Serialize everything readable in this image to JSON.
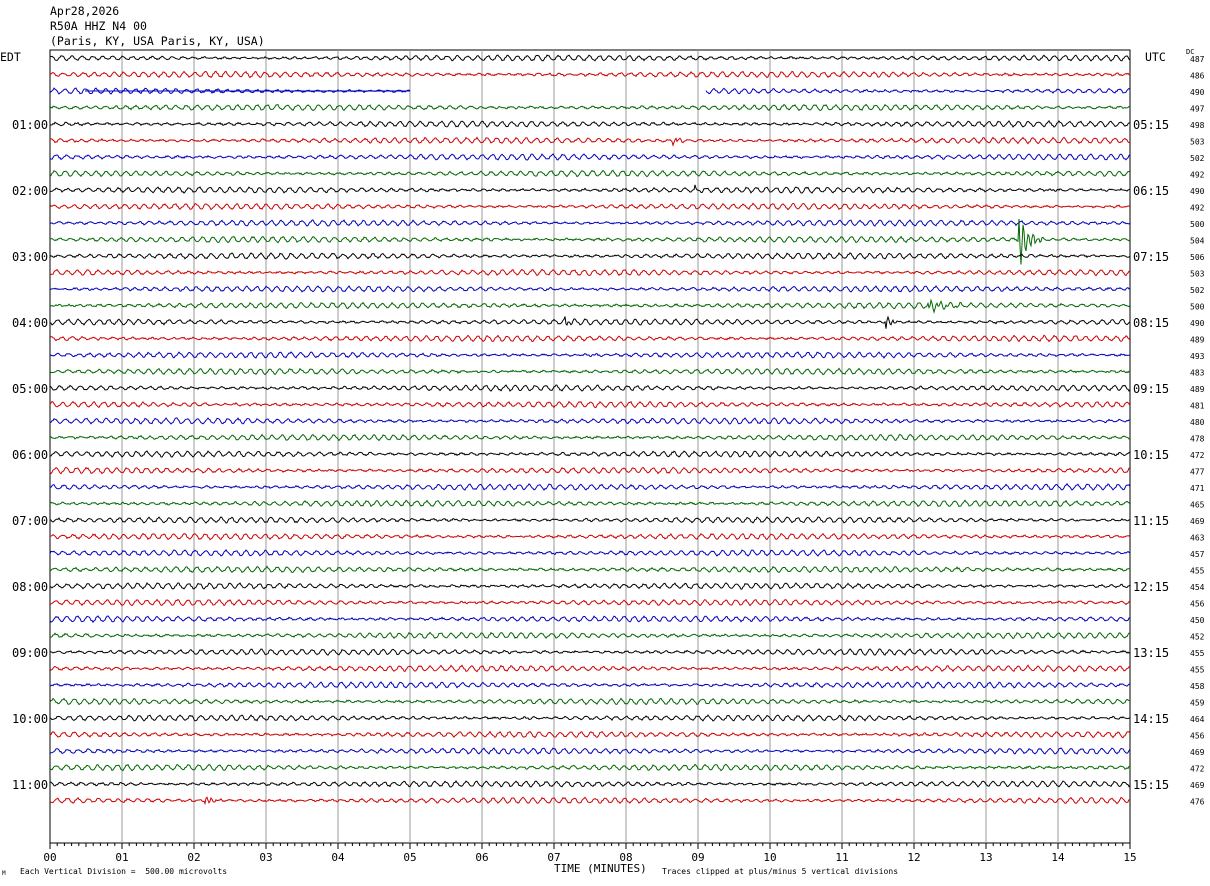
{
  "header": {
    "date": "Apr28,2026",
    "station": "R50A HHZ N4 00",
    "location": "(Paris, KY, USA Paris, KY, USA)"
  },
  "left_tz": "EDT",
  "right_tz": "UTC",
  "dc_label": "DC",
  "footer": {
    "scale": "Each Vertical Division =  500.00 microvolts",
    "xaxis_title": "TIME (MINUTES)",
    "clip_note": "Traces clipped at plus/minus 5 vertical divisions",
    "logo": "M"
  },
  "colors": {
    "trace_cycle": [
      "#000000",
      "#cc0000",
      "#0000bb",
      "#006600"
    ],
    "grid": "#999999"
  },
  "chart_data": {
    "type": "line",
    "title": "R50A HHZ N4 00",
    "xlabel": "TIME (MINUTES)",
    "x_ticks": [
      "00",
      "01",
      "02",
      "03",
      "04",
      "05",
      "06",
      "07",
      "08",
      "09",
      "10",
      "11",
      "12",
      "13",
      "14",
      "15"
    ],
    "xlim": [
      0,
      15
    ],
    "traces_per_hour": 4,
    "left_hour_labels": [
      "01:00",
      "02:00",
      "03:00",
      "04:00",
      "05:00",
      "06:00",
      "07:00",
      "08:00",
      "09:00",
      "10:00",
      "11:00"
    ],
    "right_hour_labels": [
      "05:15",
      "06:15",
      "07:15",
      "08:15",
      "09:15",
      "10:15",
      "11:15",
      "12:15",
      "13:15",
      "14:15",
      "15:15"
    ],
    "dc_offsets": [
      487,
      486,
      490,
      497,
      498,
      503,
      502,
      492,
      490,
      492,
      500,
      504,
      506,
      503,
      502,
      500,
      490,
      489,
      493,
      483,
      489,
      481,
      480,
      478,
      472,
      477,
      471,
      465,
      469,
      463,
      457,
      455,
      454,
      456,
      450,
      452,
      455,
      455,
      458,
      459,
      464,
      456,
      469,
      472,
      469,
      476
    ],
    "data_gaps": [
      {
        "trace": 2,
        "from_min": 5.0,
        "to_min": 9.1
      }
    ],
    "events": [
      {
        "trace": 11,
        "at_min": 13.45,
        "amplitude": 3.5,
        "duration_min": 0.35
      },
      {
        "trace": 16,
        "at_min": 11.6,
        "amplitude": 1.0,
        "duration_min": 0.2
      },
      {
        "trace": 16,
        "at_min": 7.15,
        "amplitude": 0.7,
        "duration_min": 0.2
      },
      {
        "trace": 15,
        "at_min": 12.2,
        "amplitude": 0.7,
        "duration_min": 0.6
      },
      {
        "trace": 45,
        "at_min": 2.15,
        "amplitude": 0.6,
        "duration_min": 0.3
      },
      {
        "trace": 8,
        "at_min": 8.95,
        "amplitude": 0.4,
        "duration_min": 0.2
      },
      {
        "trace": 5,
        "at_min": 8.65,
        "amplitude": 0.5,
        "duration_min": 0.2
      }
    ]
  }
}
